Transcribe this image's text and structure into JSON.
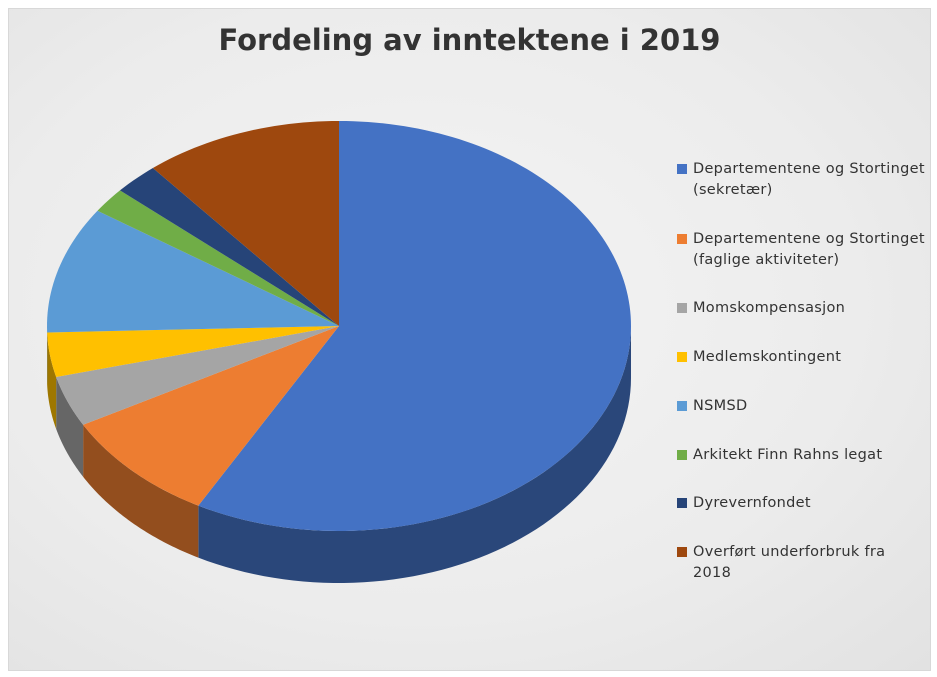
{
  "chart_data": {
    "type": "pie",
    "title": "Fordeling av inntektene i 2019",
    "categories": [
      "Departementene og Stortinget (sekretær)",
      "Departementene og Stortinget (faglige aktiviteter)",
      "Momskompensasjon",
      "Medlemskontingent",
      "NSMSD",
      "Arkitekt Finn Rahns legat",
      "Dyrevernfondet",
      "Overført underforbruk fra 2018"
    ],
    "values": [
      58,
      9,
      4,
      3.5,
      10,
      2,
      2.5,
      11
    ],
    "colors": [
      "#4472c4",
      "#ed7d31",
      "#a5a5a5",
      "#ffc000",
      "#5b9bd5",
      "#70ad47",
      "#264478",
      "#9e480e"
    ],
    "legend": "right"
  }
}
